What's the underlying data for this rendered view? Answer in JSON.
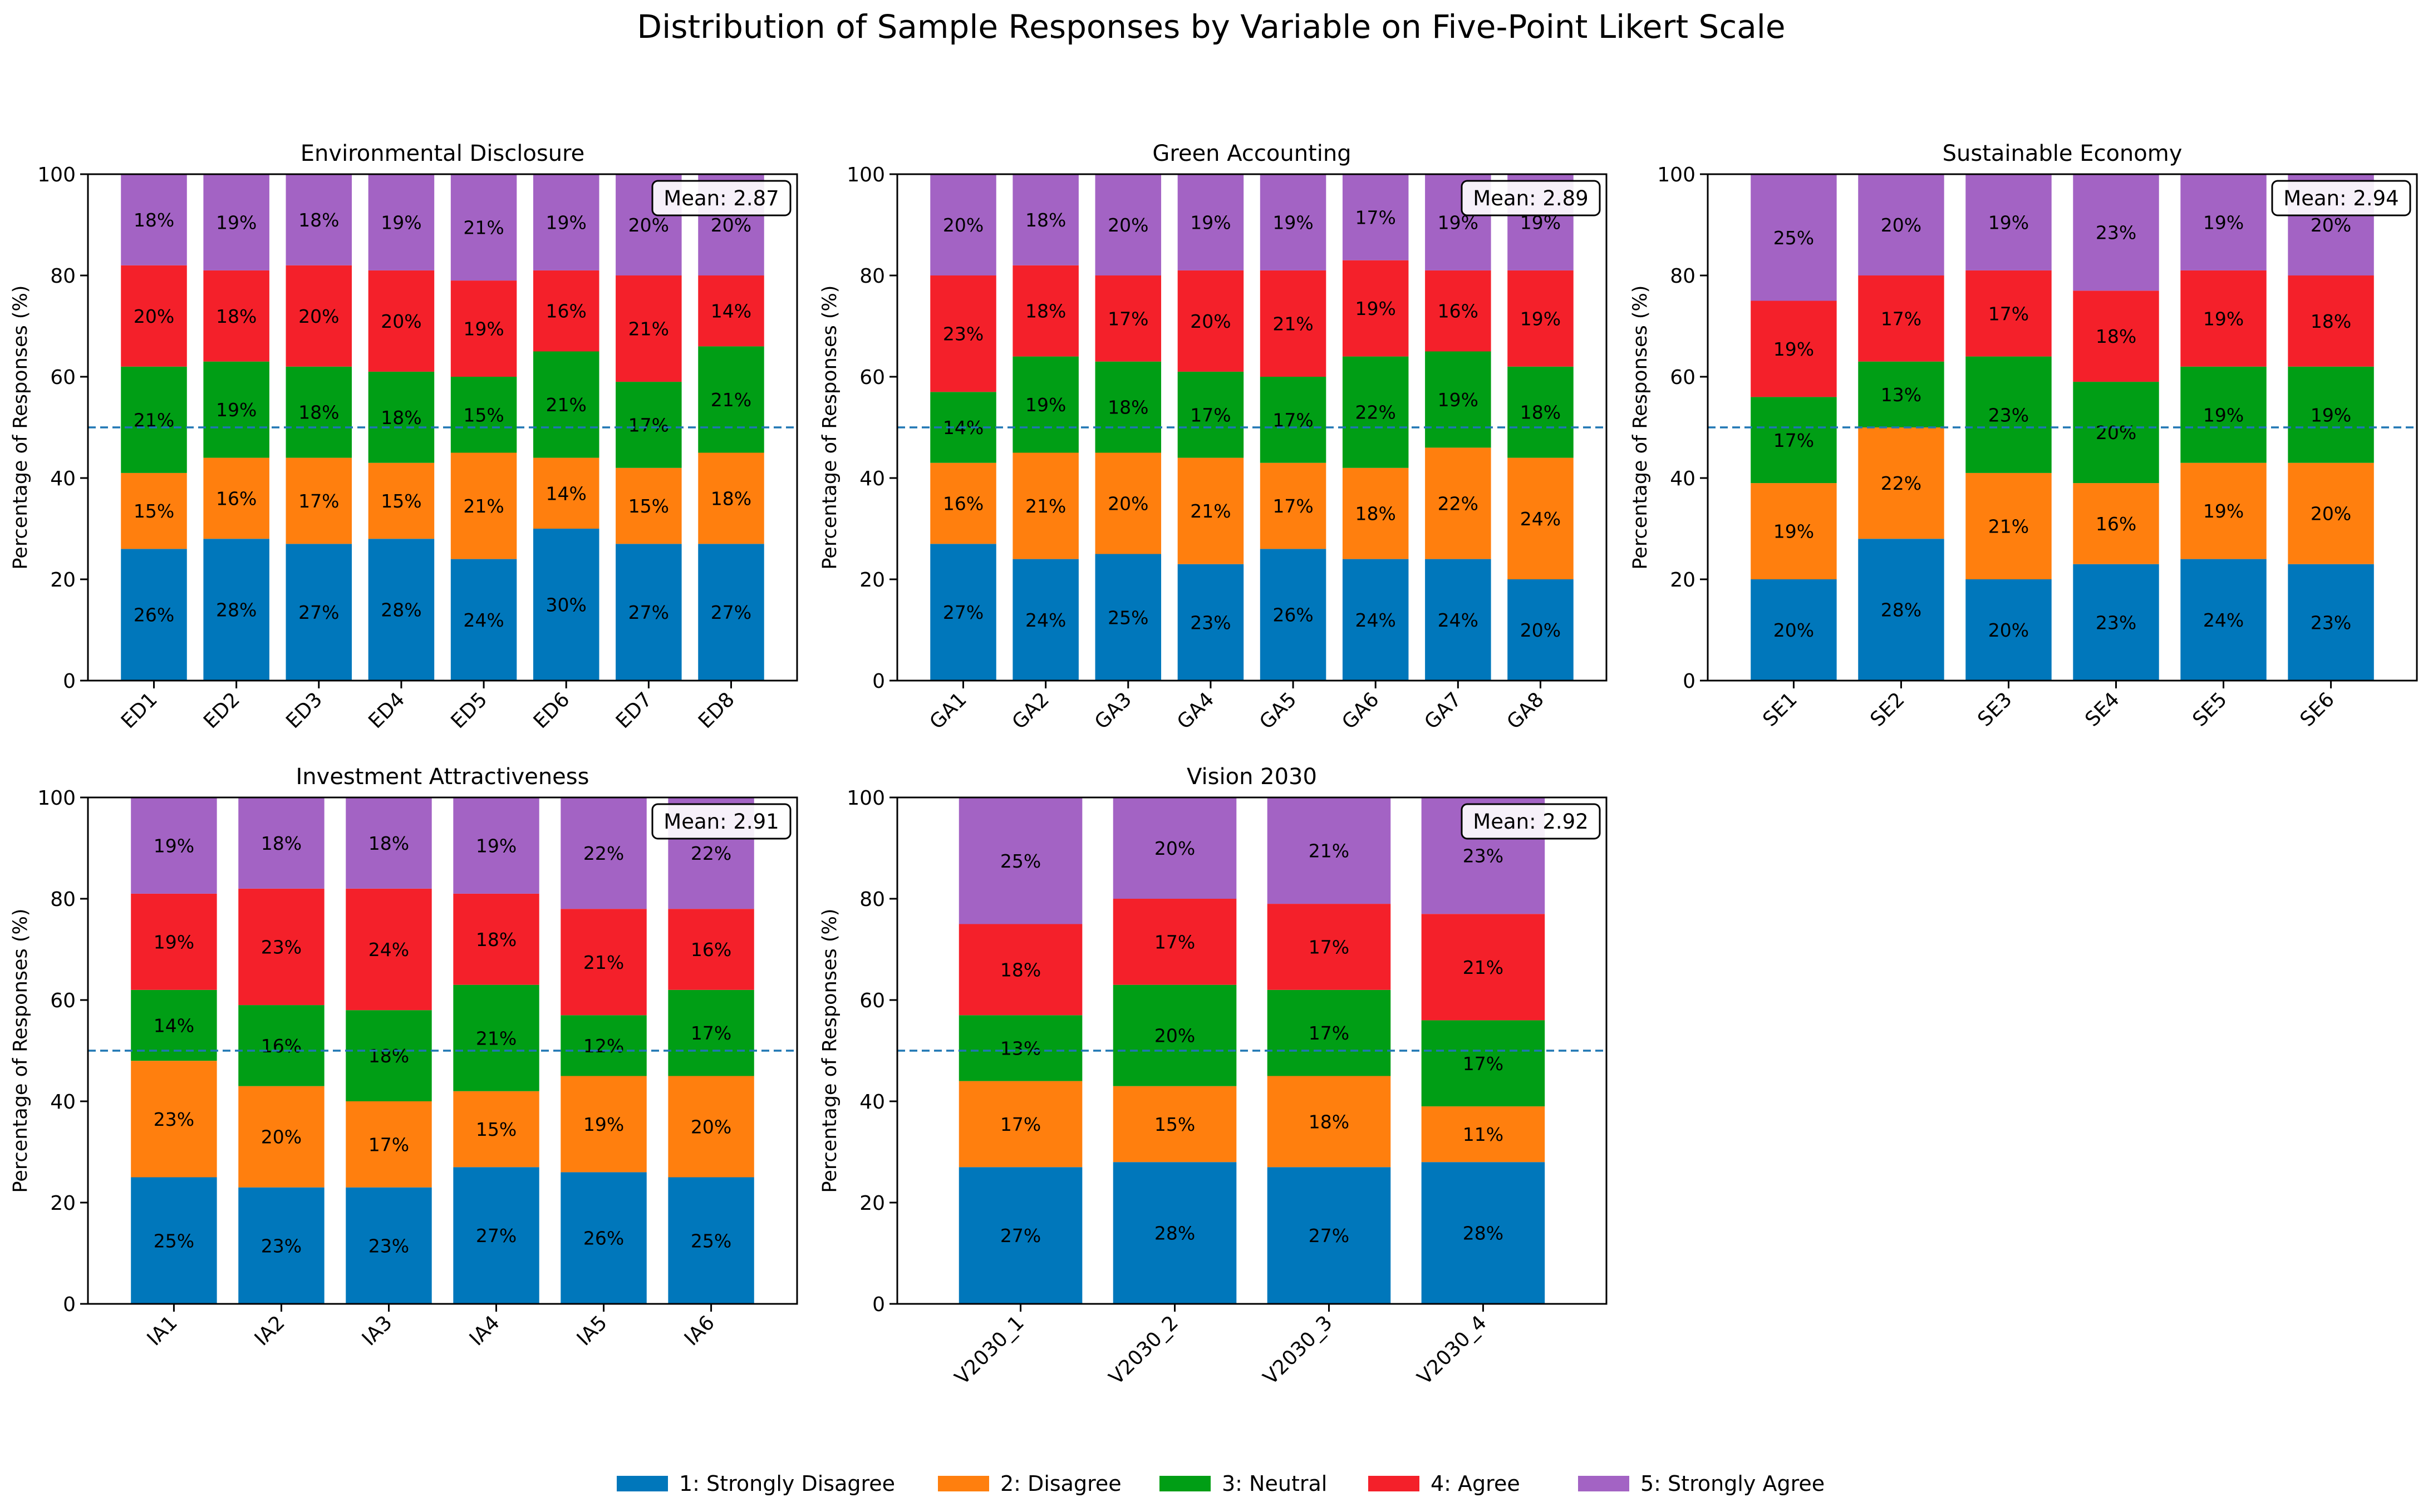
{
  "title": "Distribution of Sample Responses by Variable on Five-Point Likert Scale",
  "colors": {
    "1": "#0077bb",
    "2": "#ff7f0e",
    "3": "#009e15",
    "4": "#f4202a",
    "5": "#a363c4",
    "reference_line": "#1f77b4"
  },
  "legend": [
    "1: Strongly Disagree",
    "2: Disagree",
    "3: Neutral",
    "4: Agree",
    "5: Strongly Agree"
  ],
  "chart_data": [
    {
      "type": "bar",
      "stacked": true,
      "title": "Environmental Disclosure",
      "ylabel": "Percentage of Responses (%)",
      "ylim": [
        0,
        100
      ],
      "yticks": [
        "0",
        "20",
        "40",
        "60",
        "80",
        "100"
      ],
      "reference_line": 50,
      "mean_label": "Mean: 2.87",
      "categories": [
        "ED1",
        "ED2",
        "ED3",
        "ED4",
        "ED5",
        "ED6",
        "ED7",
        "ED8"
      ],
      "series": [
        {
          "name": "1: Strongly Disagree",
          "values": [
            26,
            28,
            27,
            28,
            24,
            30,
            27,
            27
          ],
          "labels": [
            "26%",
            "28%",
            "27%",
            "28%",
            "24%",
            "30%",
            "27%",
            "27%"
          ]
        },
        {
          "name": "2: Disagree",
          "values": [
            15,
            16,
            17,
            15,
            21,
            14,
            15,
            18
          ],
          "labels": [
            "15%",
            "16%",
            "17%",
            "15%",
            "21%",
            "14%",
            "15%",
            "18%"
          ]
        },
        {
          "name": "3: Neutral",
          "values": [
            21,
            19,
            18,
            18,
            15,
            21,
            17,
            21
          ],
          "labels": [
            "21%",
            "19%",
            "18%",
            "18%",
            "15%",
            "21%",
            "17%",
            "21%"
          ]
        },
        {
          "name": "4: Agree",
          "values": [
            20,
            18,
            20,
            20,
            19,
            16,
            21,
            14
          ],
          "labels": [
            "20%",
            "18%",
            "20%",
            "20%",
            "19%",
            "16%",
            "21%",
            "14%"
          ]
        },
        {
          "name": "5: Strongly Agree",
          "values": [
            18,
            19,
            18,
            19,
            21,
            19,
            20,
            20
          ],
          "labels": [
            "18%",
            "19%",
            "18%",
            "19%",
            "21%",
            "19%",
            "20%",
            "20%"
          ]
        }
      ]
    },
    {
      "type": "bar",
      "stacked": true,
      "title": "Green Accounting",
      "ylabel": "Percentage of Responses (%)",
      "ylim": [
        0,
        100
      ],
      "yticks": [
        "0",
        "20",
        "40",
        "60",
        "80",
        "100"
      ],
      "reference_line": 50,
      "mean_label": "Mean: 2.89",
      "categories": [
        "GA1",
        "GA2",
        "GA3",
        "GA4",
        "GA5",
        "GA6",
        "GA7",
        "GA8"
      ],
      "series": [
        {
          "name": "1: Strongly Disagree",
          "values": [
            27,
            24,
            25,
            23,
            26,
            24,
            24,
            20
          ],
          "labels": [
            "27%",
            "24%",
            "25%",
            "23%",
            "26%",
            "24%",
            "24%",
            "20%"
          ]
        },
        {
          "name": "2: Disagree",
          "values": [
            16,
            21,
            20,
            21,
            17,
            18,
            22,
            24
          ],
          "labels": [
            "16%",
            "21%",
            "20%",
            "21%",
            "17%",
            "18%",
            "22%",
            "24%"
          ]
        },
        {
          "name": "3: Neutral",
          "values": [
            14,
            19,
            18,
            17,
            17,
            22,
            19,
            18
          ],
          "labels": [
            "14%",
            "19%",
            "18%",
            "17%",
            "17%",
            "22%",
            "19%",
            "18%"
          ]
        },
        {
          "name": "4: Agree",
          "values": [
            23,
            18,
            17,
            20,
            21,
            19,
            16,
            19
          ],
          "labels": [
            "23%",
            "18%",
            "17%",
            "20%",
            "21%",
            "19%",
            "16%",
            "19%"
          ]
        },
        {
          "name": "5: Strongly Agree",
          "values": [
            20,
            18,
            20,
            19,
            19,
            17,
            19,
            19
          ],
          "labels": [
            "20%",
            "18%",
            "20%",
            "19%",
            "19%",
            "17%",
            "19%",
            "19%"
          ]
        }
      ]
    },
    {
      "type": "bar",
      "stacked": true,
      "title": "Sustainable Economy",
      "ylabel": "Percentage of Responses (%)",
      "ylim": [
        0,
        100
      ],
      "yticks": [
        "0",
        "20",
        "40",
        "60",
        "80",
        "100"
      ],
      "reference_line": 50,
      "mean_label": "Mean: 2.94",
      "categories": [
        "SE1",
        "SE2",
        "SE3",
        "SE4",
        "SE5",
        "SE6"
      ],
      "series": [
        {
          "name": "1: Strongly Disagree",
          "values": [
            20,
            28,
            20,
            23,
            24,
            23
          ],
          "labels": [
            "20%",
            "28%",
            "20%",
            "23%",
            "24%",
            "23%"
          ]
        },
        {
          "name": "2: Disagree",
          "values": [
            19,
            22,
            21,
            16,
            19,
            20
          ],
          "labels": [
            "19%",
            "22%",
            "21%",
            "16%",
            "19%",
            "20%"
          ]
        },
        {
          "name": "3: Neutral",
          "values": [
            17,
            13,
            23,
            20,
            19,
            19
          ],
          "labels": [
            "17%",
            "13%",
            "23%",
            "20%",
            "19%",
            "19%"
          ]
        },
        {
          "name": "4: Agree",
          "values": [
            19,
            17,
            17,
            18,
            19,
            18
          ],
          "labels": [
            "19%",
            "17%",
            "17%",
            "18%",
            "19%",
            "18%"
          ]
        },
        {
          "name": "5: Strongly Agree",
          "values": [
            25,
            20,
            19,
            23,
            19,
            20
          ],
          "labels": [
            "25%",
            "20%",
            "19%",
            "23%",
            "19%",
            "20%"
          ]
        }
      ]
    },
    {
      "type": "bar",
      "stacked": true,
      "title": "Investment Attractiveness",
      "ylabel": "Percentage of Responses (%)",
      "ylim": [
        0,
        100
      ],
      "yticks": [
        "0",
        "20",
        "40",
        "60",
        "80",
        "100"
      ],
      "reference_line": 50,
      "mean_label": "Mean: 2.91",
      "categories": [
        "IA1",
        "IA2",
        "IA3",
        "IA4",
        "IA5",
        "IA6"
      ],
      "series": [
        {
          "name": "1: Strongly Disagree",
          "values": [
            25,
            23,
            23,
            27,
            26,
            25
          ],
          "labels": [
            "25%",
            "23%",
            "23%",
            "27%",
            "26%",
            "25%"
          ]
        },
        {
          "name": "2: Disagree",
          "values": [
            23,
            20,
            17,
            15,
            19,
            20
          ],
          "labels": [
            "23%",
            "20%",
            "17%",
            "15%",
            "19%",
            "20%"
          ]
        },
        {
          "name": "3: Neutral",
          "values": [
            14,
            16,
            18,
            21,
            12,
            17
          ],
          "labels": [
            "14%",
            "16%",
            "18%",
            "21%",
            "12%",
            "17%"
          ]
        },
        {
          "name": "4: Agree",
          "values": [
            19,
            23,
            24,
            18,
            21,
            16
          ],
          "labels": [
            "19%",
            "23%",
            "24%",
            "18%",
            "21%",
            "16%"
          ]
        },
        {
          "name": "5: Strongly Agree",
          "values": [
            19,
            18,
            18,
            19,
            22,
            22
          ],
          "labels": [
            "19%",
            "18%",
            "18%",
            "19%",
            "22%",
            "22%"
          ]
        }
      ]
    },
    {
      "type": "bar",
      "stacked": true,
      "title": "Vision 2030",
      "ylabel": "Percentage of Responses (%)",
      "ylim": [
        0,
        100
      ],
      "yticks": [
        "0",
        "20",
        "40",
        "60",
        "80",
        "100"
      ],
      "reference_line": 50,
      "mean_label": "Mean: 2.92",
      "categories": [
        "V2030_1",
        "V2030_2",
        "V2030_3",
        "V2030_4"
      ],
      "series": [
        {
          "name": "1: Strongly Disagree",
          "values": [
            27,
            28,
            27,
            28
          ],
          "labels": [
            "27%",
            "28%",
            "27%",
            "28%"
          ]
        },
        {
          "name": "2: Disagree",
          "values": [
            17,
            15,
            18,
            11
          ],
          "labels": [
            "17%",
            "15%",
            "18%",
            "11%"
          ]
        },
        {
          "name": "3: Neutral",
          "values": [
            13,
            20,
            17,
            17
          ],
          "labels": [
            "13%",
            "20%",
            "17%",
            "17%"
          ]
        },
        {
          "name": "4: Agree",
          "values": [
            18,
            17,
            17,
            21
          ],
          "labels": [
            "18%",
            "17%",
            "17%",
            "21%"
          ]
        },
        {
          "name": "5: Strongly Agree",
          "values": [
            25,
            20,
            21,
            23
          ],
          "labels": [
            "25%",
            "20%",
            "21%",
            "23%"
          ]
        }
      ]
    }
  ]
}
